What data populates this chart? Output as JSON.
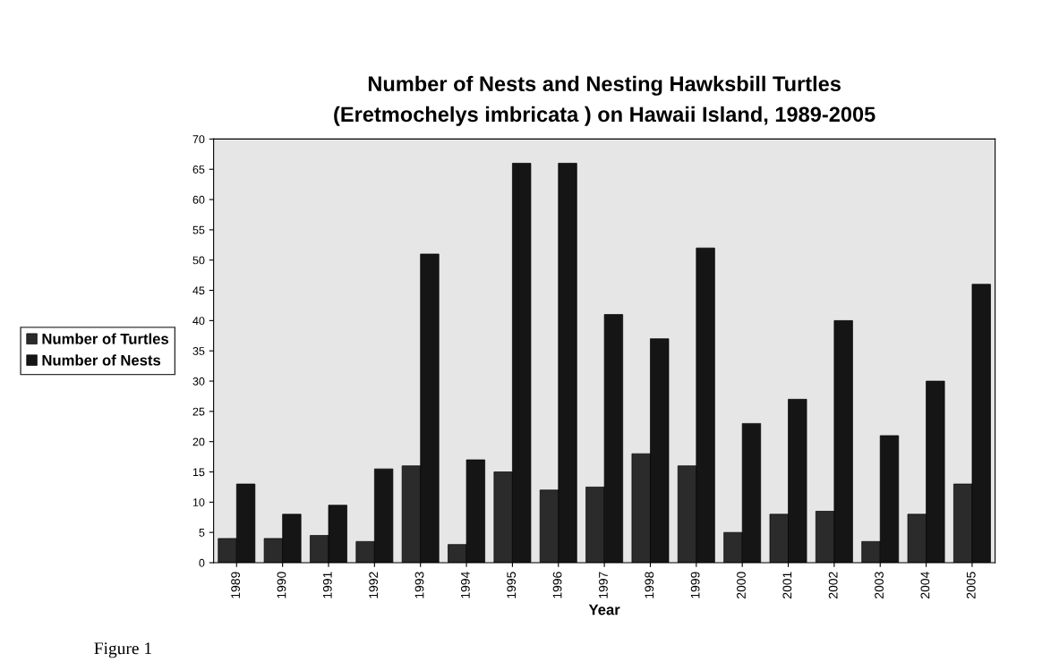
{
  "chart_data": {
    "type": "bar",
    "title": "Number of Nests and Nesting Hawksbill Turtles\n(Eretmochelys imbricata ) on Hawaii Island, 1989-2005",
    "xlabel": "Year",
    "categories": [
      "1989",
      "1990",
      "1991",
      "1992",
      "1993",
      "1994",
      "1995",
      "1996",
      "1997",
      "1998",
      "1999",
      "2000",
      "2001",
      "2002",
      "2003",
      "2004",
      "2005"
    ],
    "series": [
      {
        "name": "Number of Turtles",
        "color": "#2b2b2b",
        "values": [
          4,
          4,
          4.5,
          3.5,
          16,
          3,
          15,
          12,
          12.5,
          18,
          16,
          5,
          8,
          8.5,
          3.5,
          8,
          13
        ]
      },
      {
        "name": "Number of Nests",
        "color": "#151515",
        "values": [
          13,
          8,
          9.5,
          15.5,
          51,
          17,
          66,
          66,
          41,
          37,
          52,
          23,
          27,
          40,
          21,
          30,
          46
        ]
      }
    ],
    "ylim": [
      0,
      70
    ],
    "yticks": [
      0,
      5,
      10,
      15,
      20,
      25,
      30,
      35,
      40,
      45,
      50,
      55,
      60,
      65,
      70
    ],
    "grid": false,
    "legend": "left",
    "annotations": [
      "Figure 1"
    ]
  }
}
